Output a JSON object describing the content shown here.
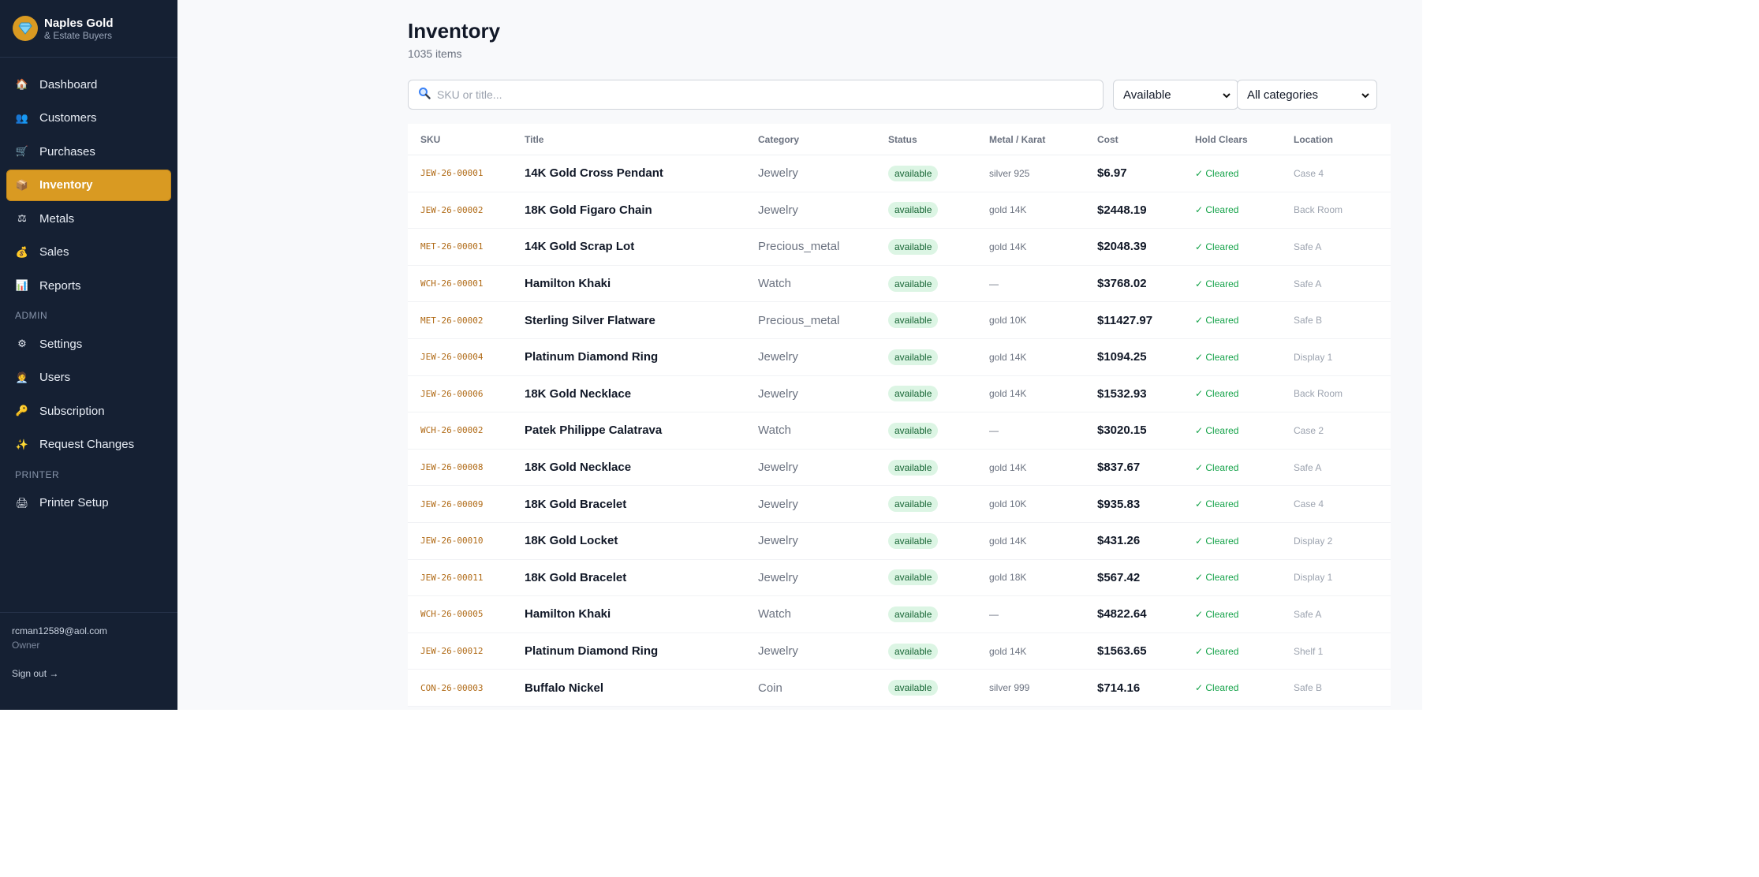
{
  "brand": {
    "name": "Naples Gold",
    "sub": "& Estate Buyers",
    "icon": "diamond-icon"
  },
  "nav": [
    {
      "label": "Dashboard",
      "icon": "home-icon",
      "glyph": "🏠",
      "active": false
    },
    {
      "label": "Customers",
      "icon": "people-icon",
      "glyph": "👥",
      "active": false
    },
    {
      "label": "Purchases",
      "icon": "cart-icon",
      "glyph": "🛒",
      "active": false
    },
    {
      "label": "Inventory",
      "icon": "box-icon",
      "glyph": "📦",
      "active": true
    },
    {
      "label": "Metals",
      "icon": "scale-icon",
      "glyph": "⚖",
      "active": false
    },
    {
      "label": "Sales",
      "icon": "money-bag-icon",
      "glyph": "💰",
      "active": false
    },
    {
      "label": "Reports",
      "icon": "bar-chart-icon",
      "glyph": "📊",
      "active": false
    }
  ],
  "admin_label": "ADMIN",
  "admin_nav": [
    {
      "label": "Settings",
      "icon": "gear-icon",
      "glyph": "⚙"
    },
    {
      "label": "Users",
      "icon": "user-badge-icon",
      "glyph": "🧑‍💼"
    },
    {
      "label": "Subscription",
      "icon": "key-icon",
      "glyph": "🔑"
    },
    {
      "label": "Request Changes",
      "icon": "sparkle-icon",
      "glyph": "✨"
    }
  ],
  "printer_label": "PRINTER",
  "printer_nav": [
    {
      "label": "Printer Setup",
      "icon": "printer-icon",
      "glyph": "🖨"
    }
  ],
  "user": {
    "email": "rcman12589@aol.com",
    "role": "Owner",
    "signout": "Sign out →"
  },
  "page": {
    "title": "Inventory",
    "count": "1035 items"
  },
  "search": {
    "placeholder": "SKU or title..."
  },
  "filters": {
    "status": "Available",
    "category": "All categories"
  },
  "columns": [
    "SKU",
    "Title",
    "Category",
    "Status",
    "Metal / Karat",
    "Cost",
    "Hold Clears",
    "Location"
  ],
  "rows": [
    {
      "sku": "JEW-26-00001",
      "title": "14K Gold Cross Pendant",
      "category": "Jewelry",
      "status": "available",
      "metal": "silver 925",
      "cost": "$6.97",
      "hold": "✓ Cleared",
      "location": "Case 4"
    },
    {
      "sku": "JEW-26-00002",
      "title": "18K Gold Figaro Chain",
      "category": "Jewelry",
      "status": "available",
      "metal": "gold 14K",
      "cost": "$2448.19",
      "hold": "✓ Cleared",
      "location": "Back Room"
    },
    {
      "sku": "MET-26-00001",
      "title": "14K Gold Scrap Lot",
      "category": "Precious_metal",
      "status": "available",
      "metal": "gold 14K",
      "cost": "$2048.39",
      "hold": "✓ Cleared",
      "location": "Safe A"
    },
    {
      "sku": "WCH-26-00001",
      "title": "Hamilton Khaki",
      "category": "Watch",
      "status": "available",
      "metal": "—",
      "cost": "$3768.02",
      "hold": "✓ Cleared",
      "location": "Safe A"
    },
    {
      "sku": "MET-26-00002",
      "title": "Sterling Silver Flatware",
      "category": "Precious_metal",
      "status": "available",
      "metal": "gold 10K",
      "cost": "$11427.97",
      "hold": "✓ Cleared",
      "location": "Safe B"
    },
    {
      "sku": "JEW-26-00004",
      "title": "Platinum Diamond Ring",
      "category": "Jewelry",
      "status": "available",
      "metal": "gold 14K",
      "cost": "$1094.25",
      "hold": "✓ Cleared",
      "location": "Display 1"
    },
    {
      "sku": "JEW-26-00006",
      "title": "18K Gold Necklace",
      "category": "Jewelry",
      "status": "available",
      "metal": "gold 14K",
      "cost": "$1532.93",
      "hold": "✓ Cleared",
      "location": "Back Room"
    },
    {
      "sku": "WCH-26-00002",
      "title": "Patek Philippe Calatrava",
      "category": "Watch",
      "status": "available",
      "metal": "—",
      "cost": "$3020.15",
      "hold": "✓ Cleared",
      "location": "Case 2"
    },
    {
      "sku": "JEW-26-00008",
      "title": "18K Gold Necklace",
      "category": "Jewelry",
      "status": "available",
      "metal": "gold 14K",
      "cost": "$837.67",
      "hold": "✓ Cleared",
      "location": "Safe A"
    },
    {
      "sku": "JEW-26-00009",
      "title": "18K Gold Bracelet",
      "category": "Jewelry",
      "status": "available",
      "metal": "gold 10K",
      "cost": "$935.83",
      "hold": "✓ Cleared",
      "location": "Case 4"
    },
    {
      "sku": "JEW-26-00010",
      "title": "18K Gold Locket",
      "category": "Jewelry",
      "status": "available",
      "metal": "gold 14K",
      "cost": "$431.26",
      "hold": "✓ Cleared",
      "location": "Display 2"
    },
    {
      "sku": "JEW-26-00011",
      "title": "18K Gold Bracelet",
      "category": "Jewelry",
      "status": "available",
      "metal": "gold 18K",
      "cost": "$567.42",
      "hold": "✓ Cleared",
      "location": "Display 1"
    },
    {
      "sku": "WCH-26-00005",
      "title": "Hamilton Khaki",
      "category": "Watch",
      "status": "available",
      "metal": "—",
      "cost": "$4822.64",
      "hold": "✓ Cleared",
      "location": "Safe A"
    },
    {
      "sku": "JEW-26-00012",
      "title": "Platinum Diamond Ring",
      "category": "Jewelry",
      "status": "available",
      "metal": "gold 14K",
      "cost": "$1563.65",
      "hold": "✓ Cleared",
      "location": "Shelf 1"
    },
    {
      "sku": "CON-26-00003",
      "title": "Buffalo Nickel",
      "category": "Coin",
      "status": "available",
      "metal": "silver 999",
      "cost": "$714.16",
      "hold": "✓ Cleared",
      "location": "Safe B"
    }
  ]
}
